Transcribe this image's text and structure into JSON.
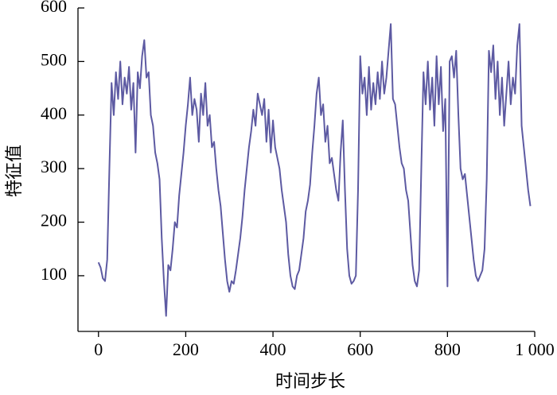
{
  "chart_data": {
    "type": "line",
    "x_label": "时间步长",
    "y_label": "特征值",
    "color": "#5d5aa2",
    "xlim": [
      -47,
      1000
    ],
    "ylim": [
      -4,
      600
    ],
    "xticks": [
      0,
      200,
      400,
      600,
      800,
      {
        "value": 1000,
        "label": "1 000"
      }
    ],
    "yticks": [
      100,
      200,
      300,
      400,
      500,
      600
    ],
    "x": [
      0,
      5,
      10,
      15,
      20,
      25,
      30,
      35,
      40,
      45,
      50,
      55,
      60,
      65,
      70,
      75,
      80,
      85,
      90,
      95,
      100,
      105,
      110,
      115,
      120,
      125,
      130,
      135,
      140,
      145,
      150,
      155,
      160,
      165,
      170,
      175,
      180,
      185,
      190,
      195,
      200,
      205,
      210,
      215,
      220,
      225,
      230,
      235,
      240,
      245,
      250,
      255,
      260,
      265,
      270,
      275,
      280,
      285,
      290,
      295,
      300,
      305,
      310,
      315,
      320,
      325,
      330,
      335,
      340,
      345,
      350,
      355,
      360,
      365,
      370,
      375,
      380,
      385,
      390,
      395,
      400,
      405,
      410,
      415,
      420,
      425,
      430,
      435,
      440,
      445,
      450,
      455,
      460,
      465,
      470,
      475,
      480,
      485,
      490,
      495,
      500,
      505,
      510,
      515,
      520,
      525,
      530,
      535,
      540,
      545,
      550,
      555,
      560,
      565,
      570,
      575,
      580,
      585,
      590,
      595,
      600,
      605,
      610,
      615,
      620,
      625,
      630,
      635,
      640,
      645,
      650,
      655,
      660,
      665,
      670,
      675,
      680,
      685,
      690,
      695,
      700,
      705,
      710,
      715,
      720,
      725,
      730,
      735,
      740,
      745,
      750,
      755,
      760,
      765,
      770,
      775,
      780,
      785,
      790,
      795,
      800,
      805,
      810,
      815,
      820,
      825,
      830,
      835,
      840,
      845,
      850,
      855,
      860,
      865,
      870,
      875,
      880,
      885,
      890,
      895,
      900,
      905,
      910,
      915,
      920,
      925,
      930,
      935,
      940,
      945,
      950,
      955,
      960,
      965,
      970,
      975,
      980,
      985,
      990
    ],
    "values": [
      125,
      115,
      95,
      90,
      130,
      300,
      460,
      400,
      480,
      430,
      500,
      420,
      470,
      440,
      490,
      410,
      460,
      330,
      480,
      450,
      510,
      540,
      470,
      480,
      400,
      380,
      330,
      310,
      280,
      170,
      90,
      25,
      120,
      110,
      150,
      200,
      190,
      250,
      290,
      330,
      380,
      420,
      470,
      400,
      430,
      410,
      350,
      440,
      400,
      460,
      380,
      400,
      340,
      350,
      300,
      260,
      230,
      180,
      130,
      90,
      70,
      90,
      85,
      110,
      140,
      170,
      210,
      260,
      300,
      340,
      370,
      410,
      380,
      440,
      420,
      400,
      430,
      350,
      410,
      330,
      390,
      340,
      320,
      300,
      260,
      230,
      200,
      140,
      100,
      80,
      75,
      100,
      110,
      140,
      170,
      220,
      240,
      270,
      330,
      380,
      440,
      470,
      400,
      420,
      350,
      380,
      310,
      320,
      290,
      260,
      240,
      330,
      390,
      260,
      150,
      100,
      85,
      90,
      100,
      260,
      510,
      440,
      470,
      400,
      490,
      410,
      460,
      420,
      480,
      430,
      500,
      440,
      470,
      520,
      570,
      430,
      420,
      380,
      340,
      310,
      300,
      260,
      240,
      180,
      120,
      90,
      80,
      110,
      300,
      480,
      420,
      500,
      410,
      470,
      380,
      510,
      420,
      490,
      370,
      430,
      80,
      500,
      510,
      470,
      520,
      400,
      300,
      280,
      290,
      250,
      210,
      170,
      130,
      100,
      90,
      100,
      110,
      150,
      280,
      520,
      480,
      530,
      430,
      500,
      400,
      470,
      380,
      440,
      500,
      420,
      470,
      440,
      530,
      570,
      380,
      340,
      300,
      260,
      230
    ]
  }
}
